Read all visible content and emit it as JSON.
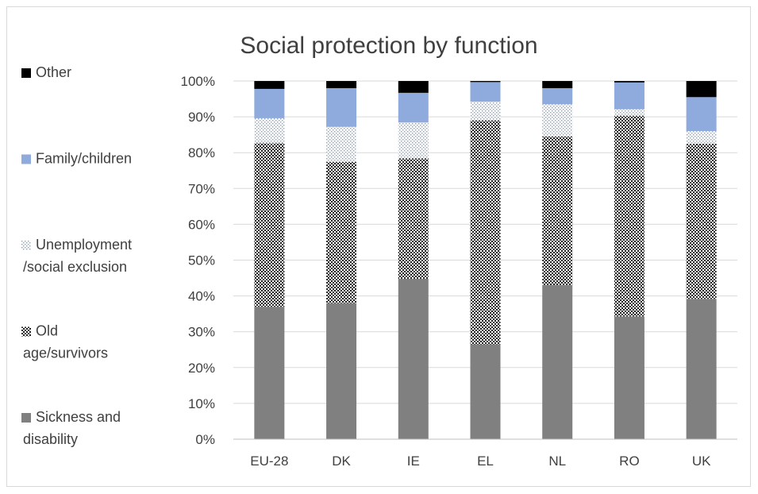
{
  "chart_data": {
    "type": "bar",
    "stacked": true,
    "title": "Social protection by function",
    "xlabel": "",
    "ylabel": "",
    "categories": [
      "EU-28",
      "DK",
      "IE",
      "EL",
      "NL",
      "RO",
      "UK"
    ],
    "ylim": [
      0,
      100
    ],
    "yticks": [
      "0%",
      "10%",
      "20%",
      "30%",
      "40%",
      "50%",
      "60%",
      "70%",
      "80%",
      "90%",
      "100%"
    ],
    "grid": true,
    "legend_position": "left",
    "series": [
      {
        "name": "Sickness and disability",
        "legend_lines": [
          "Sickness and",
          "disability"
        ],
        "color": "#808080",
        "pattern": "solid",
        "values": [
          37,
          38,
          44.8,
          26.5,
          43,
          34.3,
          39.2
        ]
      },
      {
        "name": "Old age/survivors",
        "legend_lines": [
          "Old",
          "age/survivors"
        ],
        "color": "#333333",
        "pattern": "checker",
        "values": [
          45.6,
          39.4,
          33.6,
          62.5,
          41.5,
          56,
          43.3
        ]
      },
      {
        "name": "Unemployment /social exclusion",
        "legend_lines": [
          "Unemployment",
          "/social exclusion"
        ],
        "color": "#9dc3e6",
        "pattern": "dots",
        "values": [
          7,
          9.8,
          10,
          5.2,
          9,
          1.8,
          3.5
        ]
      },
      {
        "name": "Family/children",
        "legend_lines": [
          "Family/children"
        ],
        "color": "#8faadc",
        "pattern": "solid",
        "values": [
          8.2,
          10.8,
          8.3,
          5.5,
          4.5,
          7.5,
          9.5
        ]
      },
      {
        "name": "Other",
        "legend_lines": [
          "Other"
        ],
        "color": "#000000",
        "pattern": "solid",
        "values": [
          2.2,
          2,
          3.3,
          0.3,
          2,
          0.4,
          4.5
        ]
      }
    ]
  }
}
